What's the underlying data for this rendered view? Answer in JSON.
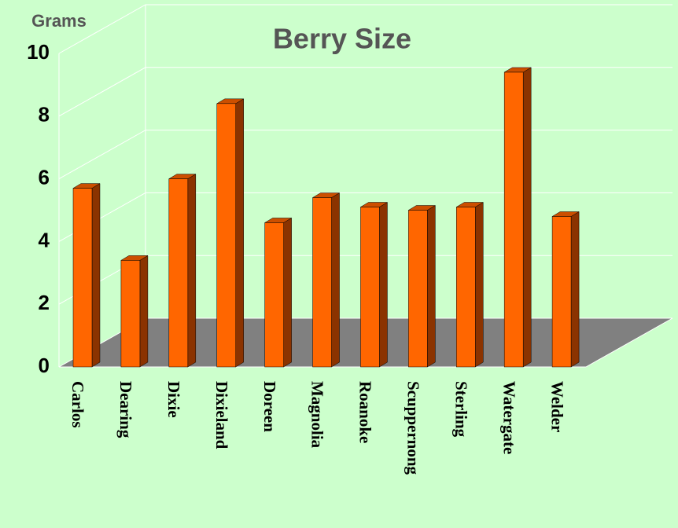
{
  "chart_data": {
    "type": "bar3d",
    "title": "Berry Size",
    "y_label": "Grams",
    "categories": [
      "Carlos",
      "Dearing",
      "Dixie",
      "Dixieland",
      "Doreen",
      "Magnolia",
      "Roanoke",
      "Scuppernong",
      "Sterling",
      "Watergate",
      "Welder"
    ],
    "values": [
      5.7,
      3.4,
      6.0,
      8.4,
      4.6,
      5.4,
      5.1,
      5.0,
      5.1,
      9.4,
      4.8
    ],
    "color": "#ff6600",
    "ylim": [
      0,
      10
    ],
    "yticks": [
      0,
      2,
      4,
      6,
      8,
      10
    ],
    "grid": true
  }
}
